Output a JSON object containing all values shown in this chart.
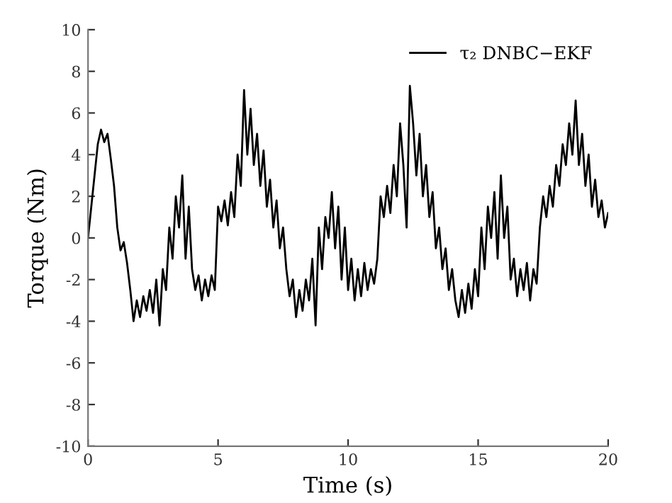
{
  "chart_data": {
    "type": "line",
    "xlabel": "Time (s)",
    "ylabel": "Torque (Nm)",
    "xlim": [
      0,
      20
    ],
    "xticks": [
      0,
      5,
      10,
      15,
      20
    ],
    "ylim": [
      -10,
      10
    ],
    "yticks": [
      -10,
      -8,
      -6,
      -4,
      -2,
      0,
      2,
      4,
      6,
      8,
      10
    ],
    "grid": false,
    "legend": "top right",
    "marker": "none",
    "line_style": "solid",
    "x": [
      0,
      0.125,
      0.25,
      0.375,
      0.5,
      0.625,
      0.75,
      0.875,
      1.0,
      1.125,
      1.25,
      1.375,
      1.5,
      1.625,
      1.75,
      1.875,
      2.0,
      2.125,
      2.25,
      2.375,
      2.5,
      2.625,
      2.75,
      2.875,
      3.0,
      3.125,
      3.25,
      3.375,
      3.5,
      3.625,
      3.75,
      3.875,
      4.0,
      4.125,
      4.25,
      4.375,
      4.5,
      4.625,
      4.75,
      4.875,
      5.0,
      5.125,
      5.25,
      5.375,
      5.5,
      5.625,
      5.75,
      5.875,
      6.0,
      6.125,
      6.25,
      6.375,
      6.5,
      6.625,
      6.75,
      6.875,
      7.0,
      7.125,
      7.25,
      7.375,
      7.5,
      7.625,
      7.75,
      7.875,
      8.0,
      8.125,
      8.25,
      8.375,
      8.5,
      8.625,
      8.75,
      8.875,
      9.0,
      9.125,
      9.25,
      9.375,
      9.5,
      9.625,
      9.75,
      9.875,
      10.0,
      10.125,
      10.25,
      10.375,
      10.5,
      10.625,
      10.75,
      10.875,
      11.0,
      11.125,
      11.25,
      11.375,
      11.5,
      11.625,
      11.75,
      11.875,
      12.0,
      12.125,
      12.25,
      12.375,
      12.5,
      12.625,
      12.75,
      12.875,
      13.0,
      13.125,
      13.25,
      13.375,
      13.5,
      13.625,
      13.75,
      13.875,
      14.0,
      14.125,
      14.25,
      14.375,
      14.5,
      14.625,
      14.75,
      14.875,
      15.0,
      15.125,
      15.25,
      15.375,
      15.5,
      15.625,
      15.75,
      15.875,
      16.0,
      16.125,
      16.25,
      16.375,
      16.5,
      16.625,
      16.75,
      16.875,
      17.0,
      17.125,
      17.25,
      17.375,
      17.5,
      17.625,
      17.75,
      17.875,
      18.0,
      18.125,
      18.25,
      18.375,
      18.5,
      18.625,
      18.75,
      18.875,
      19.0,
      19.125,
      19.25,
      19.375,
      19.5,
      19.625,
      19.75,
      19.875,
      20.0
    ],
    "series": [
      {
        "name": "τ₂ DNBC−EKF",
        "color": "#000000",
        "values": [
          0.0,
          1.5,
          3.0,
          4.5,
          5.2,
          4.6,
          5.0,
          3.8,
          2.5,
          0.5,
          -0.6,
          -0.2,
          -1.2,
          -2.5,
          -4.0,
          -3.0,
          -3.8,
          -2.8,
          -3.5,
          -2.5,
          -3.6,
          -2.0,
          -4.2,
          -1.5,
          -2.5,
          0.5,
          -1.0,
          2.0,
          0.5,
          3.0,
          -1.0,
          1.5,
          -1.5,
          -2.5,
          -1.8,
          -3.0,
          -2.0,
          -2.8,
          -1.8,
          -2.5,
          1.5,
          0.8,
          1.8,
          0.6,
          2.2,
          1.0,
          4.0,
          2.5,
          7.1,
          4.0,
          6.2,
          3.5,
          5.0,
          2.5,
          4.2,
          1.5,
          2.8,
          0.5,
          1.8,
          -0.5,
          0.5,
          -1.5,
          -2.8,
          -2.0,
          -3.8,
          -2.5,
          -3.5,
          -2.0,
          -3.0,
          -1.0,
          -4.2,
          0.5,
          -1.5,
          1.0,
          0.0,
          2.2,
          -0.5,
          1.5,
          -2.0,
          0.5,
          -2.5,
          -1.0,
          -3.0,
          -1.5,
          -2.8,
          -1.2,
          -2.5,
          -1.5,
          -2.2,
          -1.0,
          2.0,
          1.0,
          2.5,
          1.2,
          3.5,
          2.0,
          5.5,
          3.5,
          0.5,
          7.3,
          5.5,
          3.0,
          5.0,
          2.0,
          3.5,
          1.0,
          2.2,
          -0.5,
          0.5,
          -1.5,
          -0.5,
          -2.5,
          -1.5,
          -3.0,
          -3.8,
          -2.5,
          -3.6,
          -2.2,
          -3.4,
          -1.5,
          -2.8,
          0.5,
          -1.5,
          1.5,
          0.0,
          2.2,
          -1.0,
          3.0,
          0.0,
          1.5,
          -2.0,
          -1.0,
          -2.8,
          -1.5,
          -2.5,
          -1.2,
          -3.0,
          -1.5,
          -2.2,
          0.5,
          2.0,
          1.0,
          2.5,
          1.5,
          3.5,
          2.5,
          4.5,
          3.5,
          5.5,
          4.0,
          6.6,
          3.5,
          5.0,
          2.5,
          4.0,
          1.5,
          2.8,
          1.0,
          1.8,
          0.5,
          1.2
        ]
      }
    ]
  }
}
